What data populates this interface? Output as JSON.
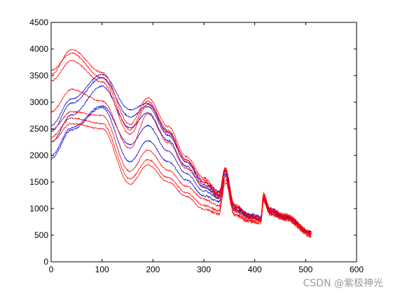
{
  "chart_data": {
    "type": "line",
    "title": "",
    "xlabel": "",
    "ylabel": "",
    "xlim": [
      0,
      600
    ],
    "ylim": [
      0,
      4500
    ],
    "xticks": [
      0,
      100,
      200,
      300,
      400,
      500,
      600
    ],
    "yticks": [
      0,
      500,
      1000,
      1500,
      2000,
      2500,
      3000,
      3500,
      4000,
      4500
    ],
    "grid": false,
    "n_points": 512,
    "series": [
      {
        "color": "#ff0000",
        "values": [
          [
            0,
            3520
          ],
          [
            40,
            3990
          ],
          [
            100,
            3560
          ],
          [
            155,
            2580
          ],
          [
            190,
            3080
          ],
          [
            230,
            2540
          ],
          [
            265,
            1980
          ],
          [
            300,
            1580
          ],
          [
            330,
            1300
          ],
          [
            342,
            1770
          ],
          [
            360,
            1080
          ],
          [
            390,
            880
          ],
          [
            412,
            830
          ],
          [
            417,
            1280
          ],
          [
            430,
            1000
          ],
          [
            460,
            890
          ],
          [
            512,
            560
          ]
        ]
      },
      {
        "color": "#ff0000",
        "values": [
          [
            0,
            3600
          ],
          [
            40,
            3920
          ],
          [
            100,
            3460
          ],
          [
            155,
            2480
          ],
          [
            190,
            3020
          ],
          [
            230,
            2470
          ],
          [
            265,
            1920
          ],
          [
            300,
            1540
          ],
          [
            330,
            1270
          ],
          [
            342,
            1750
          ],
          [
            360,
            1060
          ],
          [
            390,
            860
          ],
          [
            412,
            810
          ],
          [
            417,
            1260
          ],
          [
            430,
            980
          ],
          [
            460,
            870
          ],
          [
            512,
            540
          ]
        ]
      },
      {
        "color": "#ff0000",
        "values": [
          [
            0,
            3400
          ],
          [
            40,
            3780
          ],
          [
            100,
            3380
          ],
          [
            155,
            2400
          ],
          [
            190,
            2960
          ],
          [
            230,
            2420
          ],
          [
            265,
            1880
          ],
          [
            300,
            1500
          ],
          [
            330,
            1240
          ],
          [
            342,
            1730
          ],
          [
            360,
            1040
          ],
          [
            390,
            850
          ],
          [
            412,
            800
          ],
          [
            417,
            1240
          ],
          [
            430,
            970
          ],
          [
            460,
            860
          ],
          [
            512,
            530
          ]
        ]
      },
      {
        "color": "#ff0000",
        "values": [
          [
            0,
            2820
          ],
          [
            40,
            3240
          ],
          [
            100,
            3020
          ],
          [
            155,
            2130
          ],
          [
            190,
            2780
          ],
          [
            230,
            2240
          ],
          [
            265,
            1760
          ],
          [
            300,
            1420
          ],
          [
            330,
            1200
          ],
          [
            342,
            1700
          ],
          [
            360,
            1000
          ],
          [
            390,
            820
          ],
          [
            412,
            780
          ],
          [
            417,
            1200
          ],
          [
            430,
            950
          ],
          [
            460,
            840
          ],
          [
            512,
            520
          ]
        ]
      },
      {
        "color": "#ff0000",
        "values": [
          [
            0,
            2480
          ],
          [
            40,
            2820
          ],
          [
            100,
            2750
          ],
          [
            155,
            1700
          ],
          [
            190,
            2100
          ],
          [
            230,
            1720
          ],
          [
            265,
            1420
          ],
          [
            300,
            1180
          ],
          [
            330,
            1050
          ],
          [
            342,
            1600
          ],
          [
            360,
            950
          ],
          [
            390,
            790
          ],
          [
            412,
            760
          ],
          [
            417,
            1180
          ],
          [
            430,
            920
          ],
          [
            460,
            820
          ],
          [
            512,
            500
          ]
        ]
      },
      {
        "color": "#ff0000",
        "values": [
          [
            0,
            2350
          ],
          [
            40,
            2700
          ],
          [
            100,
            2600
          ],
          [
            155,
            1560
          ],
          [
            190,
            1920
          ],
          [
            230,
            1580
          ],
          [
            265,
            1300
          ],
          [
            300,
            1060
          ],
          [
            330,
            960
          ],
          [
            342,
            1540
          ],
          [
            360,
            900
          ],
          [
            390,
            770
          ],
          [
            412,
            740
          ],
          [
            417,
            1160
          ],
          [
            430,
            900
          ],
          [
            460,
            800
          ],
          [
            512,
            480
          ]
        ]
      },
      {
        "color": "#ff0000",
        "values": [
          [
            0,
            2260
          ],
          [
            40,
            2600
          ],
          [
            100,
            2500
          ],
          [
            155,
            1460
          ],
          [
            190,
            1820
          ],
          [
            230,
            1500
          ],
          [
            265,
            1230
          ],
          [
            300,
            990
          ],
          [
            330,
            900
          ],
          [
            342,
            1500
          ],
          [
            360,
            880
          ],
          [
            390,
            750
          ],
          [
            412,
            720
          ],
          [
            417,
            1140
          ],
          [
            430,
            890
          ],
          [
            460,
            790
          ],
          [
            512,
            470
          ]
        ]
      },
      {
        "color": "#0000cc",
        "values": [
          [
            0,
            2560
          ],
          [
            40,
            3060
          ],
          [
            100,
            3520
          ],
          [
            155,
            2860
          ],
          [
            190,
            2980
          ],
          [
            230,
            2440
          ],
          [
            265,
            1920
          ],
          [
            300,
            1490
          ],
          [
            330,
            1320
          ],
          [
            342,
            1730
          ],
          [
            360,
            1060
          ],
          [
            390,
            900
          ],
          [
            412,
            850
          ],
          [
            417,
            1220
          ],
          [
            430,
            1000
          ],
          [
            460,
            860
          ],
          [
            512,
            560
          ]
        ]
      },
      {
        "color": "#0000cc",
        "values": [
          [
            0,
            2450
          ],
          [
            40,
            2980
          ],
          [
            100,
            3460
          ],
          [
            155,
            2720
          ],
          [
            190,
            2920
          ],
          [
            230,
            2380
          ],
          [
            265,
            1880
          ],
          [
            300,
            1450
          ],
          [
            330,
            1290
          ],
          [
            342,
            1710
          ],
          [
            360,
            1040
          ],
          [
            390,
            880
          ],
          [
            412,
            830
          ],
          [
            417,
            1200
          ],
          [
            430,
            980
          ],
          [
            460,
            850
          ],
          [
            512,
            550
          ]
        ]
      },
      {
        "color": "#0000cc",
        "values": [
          [
            0,
            2250
          ],
          [
            40,
            2760
          ],
          [
            100,
            3300
          ],
          [
            155,
            2520
          ],
          [
            190,
            2800
          ],
          [
            230,
            2280
          ],
          [
            265,
            1800
          ],
          [
            300,
            1400
          ],
          [
            330,
            1250
          ],
          [
            342,
            1690
          ],
          [
            360,
            1020
          ],
          [
            390,
            860
          ],
          [
            412,
            810
          ],
          [
            417,
            1180
          ],
          [
            430,
            960
          ],
          [
            460,
            840
          ],
          [
            512,
            540
          ]
        ]
      },
      {
        "color": "#0000cc",
        "values": [
          [
            0,
            2000
          ],
          [
            40,
            2520
          ],
          [
            100,
            2930
          ],
          [
            155,
            2200
          ],
          [
            190,
            2560
          ],
          [
            230,
            2080
          ],
          [
            265,
            1660
          ],
          [
            300,
            1330
          ],
          [
            330,
            1200
          ],
          [
            342,
            1660
          ],
          [
            360,
            990
          ],
          [
            390,
            840
          ],
          [
            412,
            800
          ],
          [
            417,
            1160
          ],
          [
            430,
            940
          ],
          [
            460,
            830
          ],
          [
            512,
            530
          ]
        ]
      },
      {
        "color": "#0000cc",
        "values": [
          [
            0,
            1940
          ],
          [
            40,
            2480
          ],
          [
            100,
            2900
          ],
          [
            155,
            1880
          ],
          [
            190,
            2280
          ],
          [
            230,
            1880
          ],
          [
            265,
            1540
          ],
          [
            300,
            1240
          ],
          [
            330,
            1130
          ],
          [
            342,
            1610
          ],
          [
            360,
            970
          ],
          [
            390,
            830
          ],
          [
            412,
            790
          ],
          [
            417,
            1150
          ],
          [
            430,
            930
          ],
          [
            460,
            820
          ],
          [
            512,
            520
          ]
        ]
      }
    ]
  },
  "watermark": "CSDN @紫极神光"
}
